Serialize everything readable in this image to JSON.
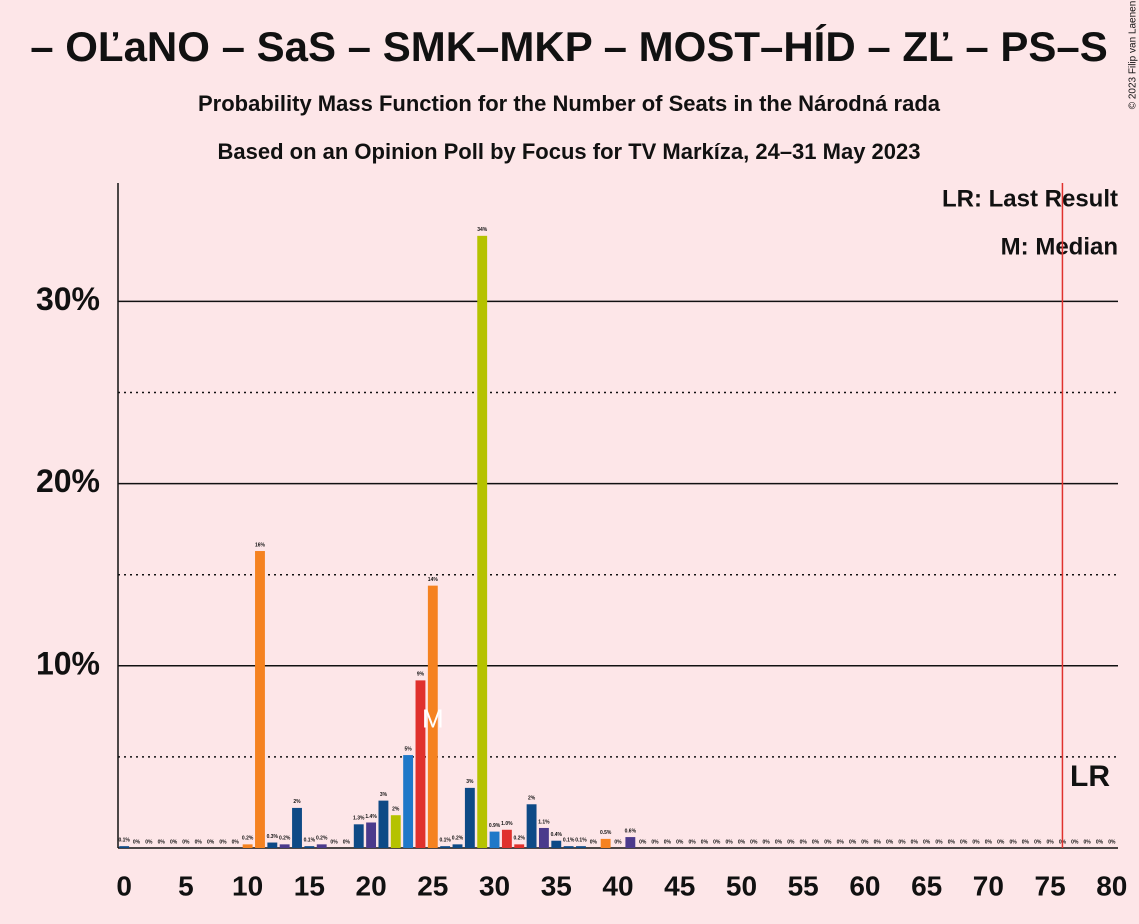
{
  "chart_data": {
    "type": "bar",
    "title": "– OĽaNO – SaS – SMK–MKP – MOST–HÍD – ZĽ – PS–S",
    "subtitle": "Probability Mass Function for the Number of Seats in the Národná rada",
    "subtitle2": "Based on an Opinion Poll by Focus for TV Markíza, 24–31 May 2023",
    "copyright": "© 2023 Filip van Laenen",
    "legend": [
      "LR: Last Result",
      "M: Median"
    ],
    "x": [
      0,
      1,
      2,
      3,
      4,
      5,
      6,
      7,
      8,
      9,
      10,
      11,
      12,
      13,
      14,
      15,
      16,
      17,
      18,
      19,
      20,
      21,
      22,
      23,
      24,
      25,
      26,
      27,
      28,
      29,
      30,
      31,
      32,
      33,
      34,
      35,
      36,
      37,
      38,
      39,
      40,
      41,
      42,
      43,
      44,
      45,
      46,
      47,
      48,
      49,
      50,
      51,
      52,
      53,
      54,
      55,
      56,
      57,
      58,
      59,
      60,
      61,
      62,
      63,
      64,
      65,
      66,
      67,
      68,
      69,
      70,
      71,
      72,
      73,
      74,
      75,
      76,
      77,
      78,
      79,
      80
    ],
    "values": [
      0.1,
      0,
      0,
      0,
      0,
      0,
      0,
      0,
      0,
      0,
      0.2,
      16.3,
      0.3,
      0.2,
      2.2,
      0.1,
      0.2,
      0,
      0,
      1.3,
      1.4,
      2.6,
      1.8,
      5.1,
      9.2,
      14.4,
      0.1,
      0.2,
      3.3,
      33.6,
      0.9,
      1.0,
      0.2,
      2.4,
      1.1,
      0.4,
      0.1,
      0.1,
      0,
      0.5,
      0,
      0.6,
      0,
      0,
      0,
      0,
      0,
      0,
      0,
      0,
      0,
      0,
      0,
      0,
      0,
      0,
      0,
      0,
      0,
      0,
      0,
      0,
      0,
      0,
      0,
      0,
      0,
      0,
      0,
      0,
      0,
      0,
      0,
      0,
      0,
      0,
      0,
      0,
      0,
      0,
      0
    ],
    "value_labels": [
      "0.1%",
      "0%",
      "0%",
      "0%",
      "0%",
      "0%",
      "0%",
      "0%",
      "0%",
      "0%",
      "0.2%",
      "16%",
      "0.3%",
      "0.2%",
      "2%",
      "0.1%",
      "0.2%",
      "0%",
      "0%",
      "1.3%",
      "1.4%",
      "3%",
      "2%",
      "5%",
      "9%",
      "14%",
      "0.1%",
      "0.2%",
      "3%",
      "34%",
      "0.9%",
      "1.0%",
      "0.2%",
      "2%",
      "1.1%",
      "0.4%",
      "0.1%",
      "0.1%",
      "0%",
      "0.5%",
      "0%",
      "0.6%",
      "0%",
      "0%",
      "0%",
      "0%",
      "0%",
      "0%",
      "0%",
      "0%",
      "0%",
      "0%",
      "0%",
      "0%",
      "0%",
      "0%",
      "0%",
      "0%",
      "0%",
      "0%",
      "0%",
      "0%",
      "0%",
      "0%",
      "0%",
      "0%",
      "0%",
      "0%",
      "0%",
      "0%",
      "0%",
      "0%",
      "0%",
      "0%",
      "0%",
      "0%",
      "0%",
      "0%",
      "0%",
      "0%",
      "0%"
    ],
    "colors": [
      "#0e4a86",
      "#0e4a86",
      "#0e4a86",
      "#0e4a86",
      "#0e4a86",
      "#0e4a86",
      "#0e4a86",
      "#0e4a86",
      "#0e4a86",
      "#0e4a86",
      "#f58220",
      "#f58220",
      "#0e4a86",
      "#4b3a8c",
      "#0e4a86",
      "#0e4a86",
      "#4b3a8c",
      "#0e4a86",
      "#0e4a86",
      "#0e4a86",
      "#4b3a8c",
      "#0e4a86",
      "#b5c200",
      "#1f78c8",
      "#e0312d",
      "#f58220",
      "#0e4a86",
      "#0e4a86",
      "#0e4a86",
      "#b5c200",
      "#1f78c8",
      "#e0312d",
      "#e0312d",
      "#0e4a86",
      "#4b3a8c",
      "#0e4a86",
      "#0e4a86",
      "#0e4a86",
      "#0e4a86",
      "#f58220",
      "#0e4a86",
      "#4b3a8c",
      "#0e4a86",
      "#0e4a86",
      "#0e4a86",
      "#0e4a86",
      "#0e4a86",
      "#0e4a86",
      "#0e4a86",
      "#0e4a86",
      "#0e4a86",
      "#0e4a86",
      "#0e4a86",
      "#0e4a86",
      "#0e4a86",
      "#0e4a86",
      "#0e4a86",
      "#0e4a86",
      "#0e4a86",
      "#0e4a86",
      "#0e4a86",
      "#0e4a86",
      "#0e4a86",
      "#0e4a86",
      "#0e4a86",
      "#0e4a86",
      "#0e4a86",
      "#0e4a86",
      "#0e4a86",
      "#0e4a86",
      "#0e4a86",
      "#0e4a86",
      "#0e4a86",
      "#0e4a86",
      "#0e4a86",
      "#0e4a86",
      "#0e4a86",
      "#0e4a86",
      "#0e4a86",
      "#0e4a86",
      "#0e4a86"
    ],
    "xlim": [
      -0.5,
      80.5
    ],
    "xticks": [
      0,
      5,
      10,
      15,
      20,
      25,
      30,
      35,
      40,
      45,
      50,
      55,
      60,
      65,
      70,
      75,
      80
    ],
    "ylim": [
      0,
      36.5
    ],
    "yticks": [
      {
        "value": 10,
        "label": "10%"
      },
      {
        "value": 20,
        "label": "20%"
      },
      {
        "value": 30,
        "label": "30%"
      }
    ],
    "minor_yticks": [
      5,
      15,
      25
    ],
    "median": {
      "x": 25,
      "y": 7,
      "label": "M"
    },
    "last_result": {
      "x": 76,
      "label": "LR",
      "color": "#e0312d"
    }
  }
}
